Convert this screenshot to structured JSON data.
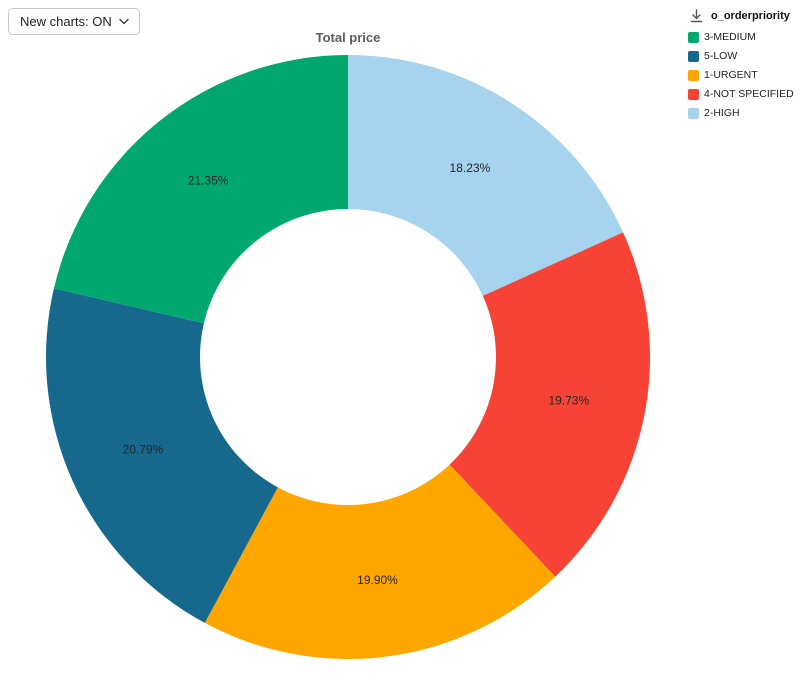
{
  "toolbar": {
    "new_charts_label": "New charts: ON"
  },
  "icons": {
    "chevron_down": "chevron-down-icon",
    "download": "download-icon"
  },
  "chart_data": {
    "type": "pie",
    "subtype": "donut",
    "title": "Total price",
    "unit": "percent",
    "start_angle_deg": 0,
    "direction": "clockwise",
    "inner_radius_ratio": 0.49,
    "grid": false,
    "slices": [
      {
        "label": "2-HIGH",
        "value": 18.23,
        "display": "18.23%",
        "color": "#A6D3EE"
      },
      {
        "label": "4-NOT SPECIFIED",
        "value": 19.73,
        "display": "19.73%",
        "color": "#F64335"
      },
      {
        "label": "1-URGENT",
        "value": 19.9,
        "display": "19.90%",
        "color": "#FFA600"
      },
      {
        "label": "5-LOW",
        "value": 20.79,
        "display": "20.79%",
        "color": "#16698C"
      },
      {
        "label": "3-MEDIUM",
        "value": 21.35,
        "display": "21.35%",
        "color": "#00A870"
      }
    ],
    "legend": {
      "title": "o_orderpriority",
      "position": "top-right",
      "items": [
        {
          "label": "3-MEDIUM",
          "color": "#00A870"
        },
        {
          "label": "5-LOW",
          "color": "#16698C"
        },
        {
          "label": "1-URGENT",
          "color": "#FFA600"
        },
        {
          "label": "4-NOT SPECIFIED",
          "color": "#F64335"
        },
        {
          "label": "2-HIGH",
          "color": "#A6D3EE"
        }
      ]
    }
  }
}
